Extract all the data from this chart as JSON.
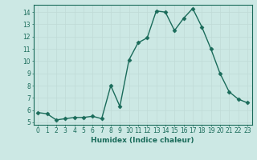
{
  "x": [
    0,
    1,
    2,
    3,
    4,
    5,
    6,
    7,
    8,
    9,
    10,
    11,
    12,
    13,
    14,
    15,
    16,
    17,
    18,
    19,
    20,
    21,
    22,
    23
  ],
  "y": [
    5.8,
    5.7,
    5.2,
    5.3,
    5.4,
    5.4,
    5.5,
    5.3,
    8.0,
    6.3,
    10.1,
    11.5,
    11.9,
    14.1,
    14.0,
    12.5,
    13.5,
    14.3,
    12.8,
    11.0,
    9.0,
    7.5,
    6.9,
    6.6
  ],
  "line_color": "#1a6b5a",
  "marker": "D",
  "markersize": 2.5,
  "linewidth": 1.0,
  "xlabel": "Humidex (Indice chaleur)",
  "xlabel_fontsize": 6.5,
  "xlabel_color": "#1a6b5a",
  "ylim": [
    4.8,
    14.6
  ],
  "xlim": [
    -0.5,
    23.5
  ],
  "yticks": [
    5,
    6,
    7,
    8,
    9,
    10,
    11,
    12,
    13,
    14
  ],
  "xticks": [
    0,
    1,
    2,
    3,
    4,
    5,
    6,
    7,
    8,
    9,
    10,
    11,
    12,
    13,
    14,
    15,
    16,
    17,
    18,
    19,
    20,
    21,
    22,
    23
  ],
  "grid_color": "#c0dbd7",
  "background_color": "#cce8e4",
  "tick_color": "#1a6b5a",
  "tick_fontsize": 5.5,
  "spine_color": "#1a6b5a",
  "spine_linewidth": 0.8
}
